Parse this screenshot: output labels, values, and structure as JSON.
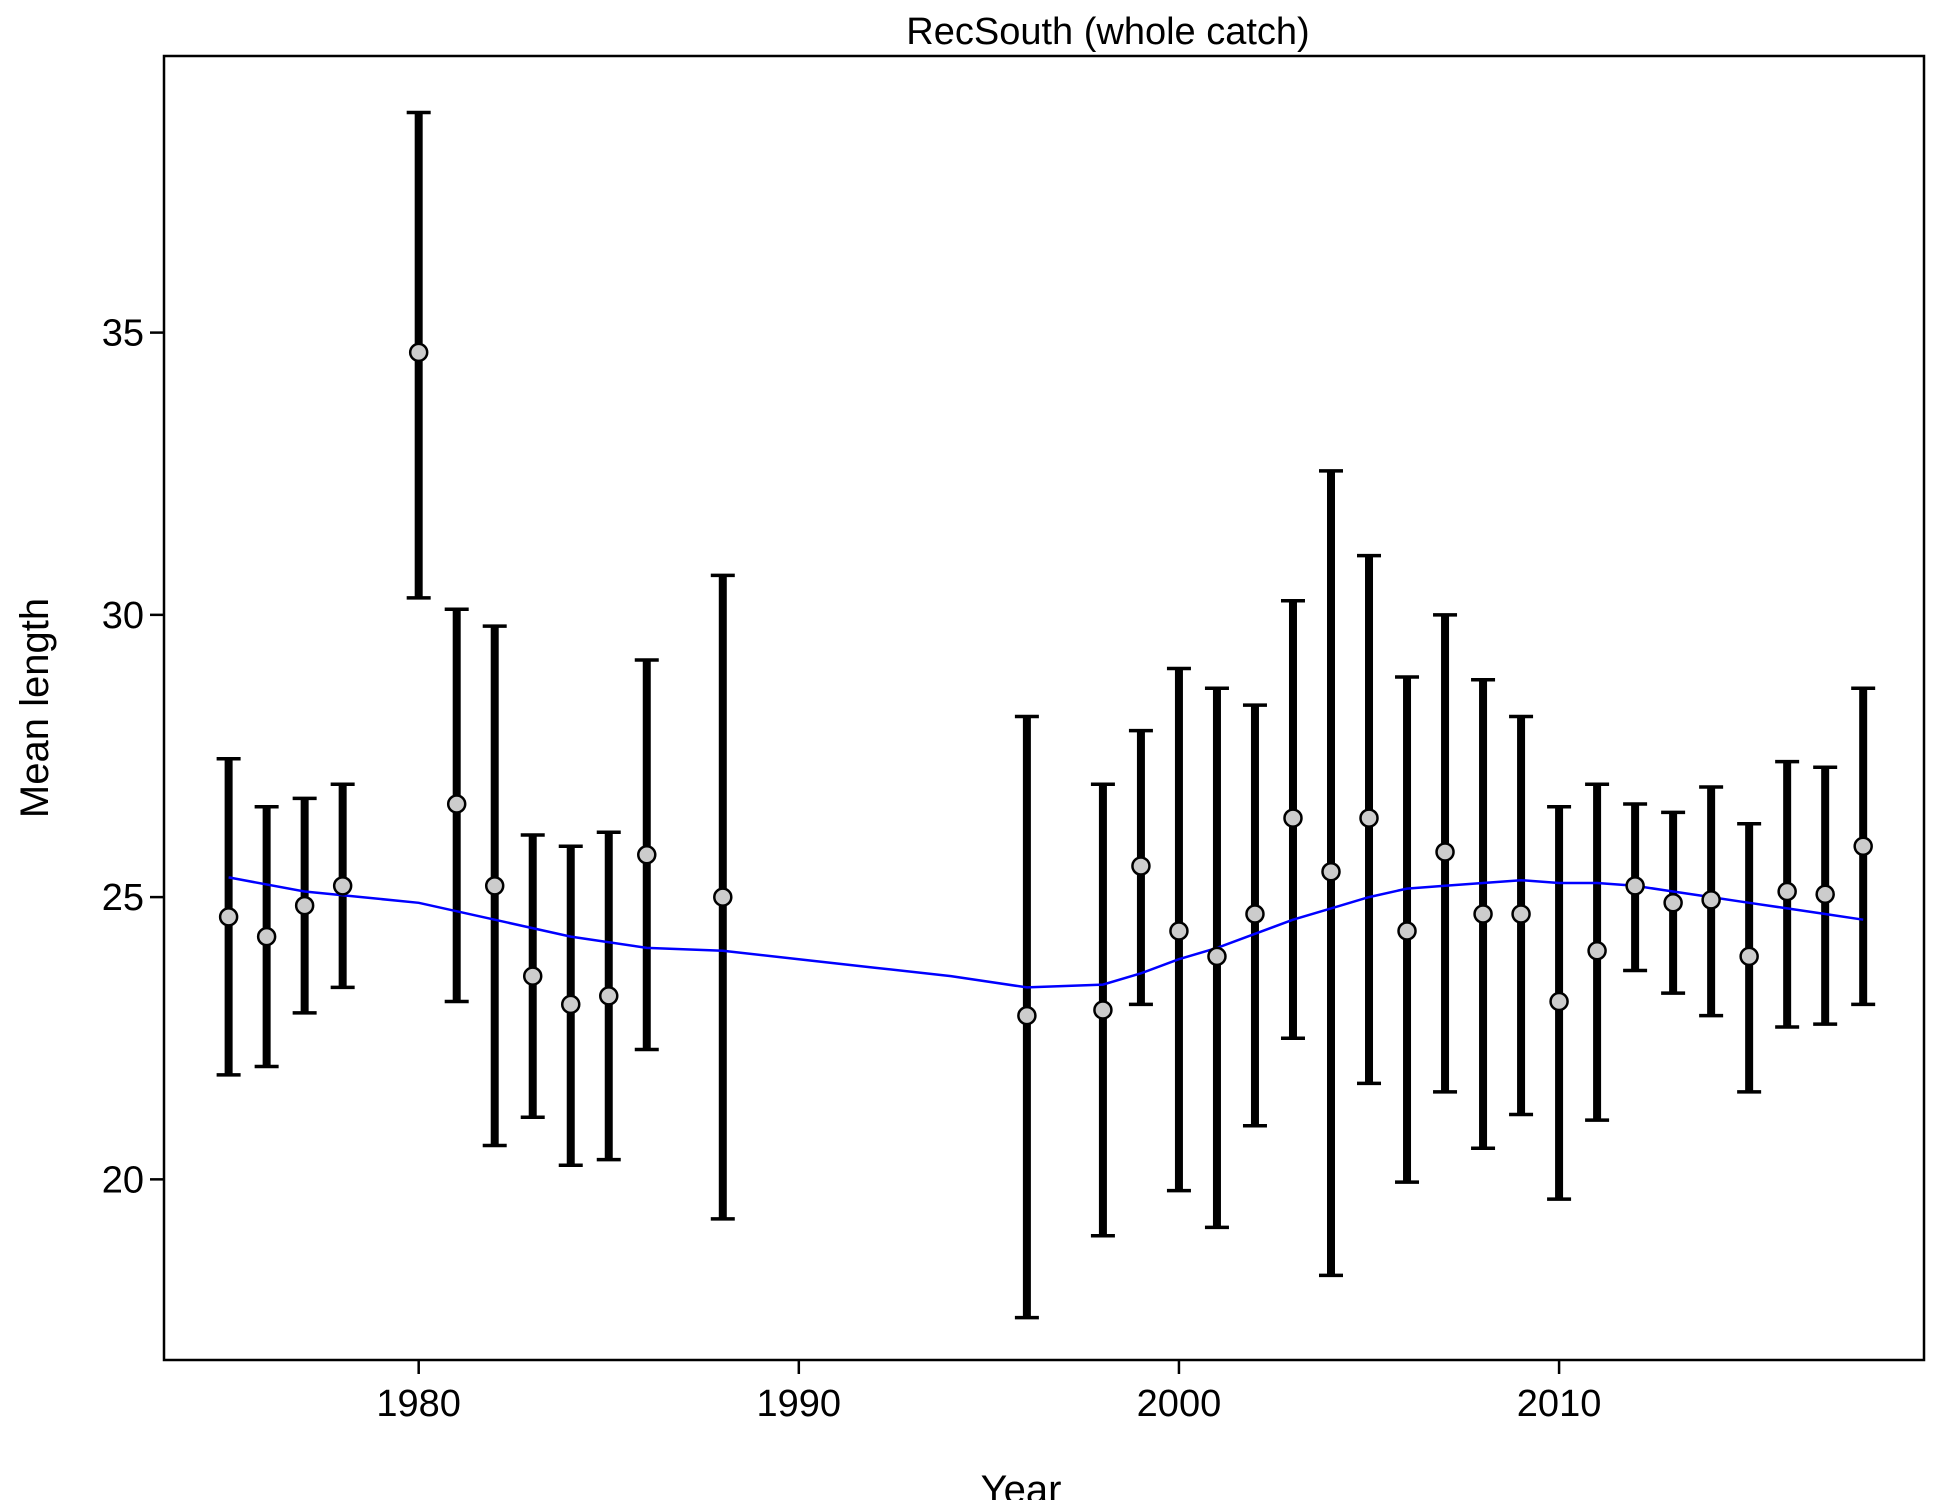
{
  "chart_data": {
    "type": "scatter",
    "title": "RecSouth (whole catch)",
    "xlabel": "Year",
    "ylabel": "Mean length",
    "xlim": [
      1973.3,
      2019.6
    ],
    "ylim": [
      16.8,
      39.9
    ],
    "xticks": [
      1980,
      1990,
      2000,
      2010
    ],
    "yticks": [
      20,
      25,
      30,
      35
    ],
    "grid": false,
    "legend": "none",
    "colors": {
      "points_fill": "#cccccc",
      "points_stroke": "#000000",
      "error_bars": "#000000",
      "smoother": "#0000ff"
    },
    "points": [
      {
        "x": 1975,
        "y": 24.65,
        "lo": 21.85,
        "hi": 27.45
      },
      {
        "x": 1976,
        "y": 24.3,
        "lo": 22.0,
        "hi": 26.6
      },
      {
        "x": 1977,
        "y": 24.85,
        "lo": 22.95,
        "hi": 26.75
      },
      {
        "x": 1978,
        "y": 25.2,
        "lo": 23.4,
        "hi": 27.0
      },
      {
        "x": 1980,
        "y": 34.65,
        "lo": 30.3,
        "hi": 38.9
      },
      {
        "x": 1981,
        "y": 26.65,
        "lo": 23.15,
        "hi": 30.1
      },
      {
        "x": 1982,
        "y": 25.2,
        "lo": 20.6,
        "hi": 29.8
      },
      {
        "x": 1983,
        "y": 23.6,
        "lo": 21.1,
        "hi": 26.1
      },
      {
        "x": 1984,
        "y": 23.1,
        "lo": 20.25,
        "hi": 25.9
      },
      {
        "x": 1985,
        "y": 23.25,
        "lo": 20.35,
        "hi": 26.15
      },
      {
        "x": 1986,
        "y": 25.75,
        "lo": 22.3,
        "hi": 29.2
      },
      {
        "x": 1988,
        "y": 25.0,
        "lo": 19.3,
        "hi": 30.7
      },
      {
        "x": 1996,
        "y": 22.9,
        "lo": 17.55,
        "hi": 28.2
      },
      {
        "x": 1998,
        "y": 23.0,
        "lo": 19.0,
        "hi": 27.0
      },
      {
        "x": 1999,
        "y": 25.55,
        "lo": 23.1,
        "hi": 27.95
      },
      {
        "x": 2000,
        "y": 24.4,
        "lo": 19.8,
        "hi": 29.05
      },
      {
        "x": 2001,
        "y": 23.95,
        "lo": 19.15,
        "hi": 28.7
      },
      {
        "x": 2002,
        "y": 24.7,
        "lo": 20.95,
        "hi": 28.4
      },
      {
        "x": 2003,
        "y": 26.4,
        "lo": 22.5,
        "hi": 30.25
      },
      {
        "x": 2004,
        "y": 25.45,
        "lo": 18.3,
        "hi": 32.55
      },
      {
        "x": 2005,
        "y": 26.4,
        "lo": 21.7,
        "hi": 31.05
      },
      {
        "x": 2006,
        "y": 24.4,
        "lo": 19.95,
        "hi": 28.9
      },
      {
        "x": 2007,
        "y": 25.8,
        "lo": 21.55,
        "hi": 30.0
      },
      {
        "x": 2008,
        "y": 24.7,
        "lo": 20.55,
        "hi": 28.85
      },
      {
        "x": 2009,
        "y": 24.7,
        "lo": 21.15,
        "hi": 28.2
      },
      {
        "x": 2010,
        "y": 23.15,
        "lo": 19.65,
        "hi": 26.6
      },
      {
        "x": 2011,
        "y": 24.05,
        "lo": 21.05,
        "hi": 27.0
      },
      {
        "x": 2012,
        "y": 25.2,
        "lo": 23.7,
        "hi": 26.65
      },
      {
        "x": 2013,
        "y": 24.9,
        "lo": 23.3,
        "hi": 26.5
      },
      {
        "x": 2014,
        "y": 24.95,
        "lo": 22.9,
        "hi": 26.95
      },
      {
        "x": 2015,
        "y": 23.95,
        "lo": 21.55,
        "hi": 26.3
      },
      {
        "x": 2016,
        "y": 25.1,
        "lo": 22.7,
        "hi": 27.4
      },
      {
        "x": 2017,
        "y": 25.05,
        "lo": 22.75,
        "hi": 27.3
      },
      {
        "x": 2018,
        "y": 25.9,
        "lo": 23.1,
        "hi": 28.7
      }
    ],
    "smoother": [
      {
        "x": 1975,
        "y": 25.35
      },
      {
        "x": 1977,
        "y": 25.1
      },
      {
        "x": 1980,
        "y": 24.9
      },
      {
        "x": 1982,
        "y": 24.6
      },
      {
        "x": 1984,
        "y": 24.3
      },
      {
        "x": 1986,
        "y": 24.1
      },
      {
        "x": 1988,
        "y": 24.05
      },
      {
        "x": 1990,
        "y": 23.9
      },
      {
        "x": 1992,
        "y": 23.75
      },
      {
        "x": 1994,
        "y": 23.6
      },
      {
        "x": 1996,
        "y": 23.4
      },
      {
        "x": 1998,
        "y": 23.45
      },
      {
        "x": 1999,
        "y": 23.65
      },
      {
        "x": 2000,
        "y": 23.9
      },
      {
        "x": 2001,
        "y": 24.1
      },
      {
        "x": 2002,
        "y": 24.35
      },
      {
        "x": 2003,
        "y": 24.6
      },
      {
        "x": 2004,
        "y": 24.8
      },
      {
        "x": 2005,
        "y": 25.0
      },
      {
        "x": 2006,
        "y": 25.15
      },
      {
        "x": 2007,
        "y": 25.2
      },
      {
        "x": 2008,
        "y": 25.25
      },
      {
        "x": 2009,
        "y": 25.3
      },
      {
        "x": 2010,
        "y": 25.25
      },
      {
        "x": 2011,
        "y": 25.25
      },
      {
        "x": 2012,
        "y": 25.2
      },
      {
        "x": 2013,
        "y": 25.1
      },
      {
        "x": 2014,
        "y": 25.0
      },
      {
        "x": 2015,
        "y": 24.9
      },
      {
        "x": 2016,
        "y": 24.8
      },
      {
        "x": 2017,
        "y": 24.7
      },
      {
        "x": 2018,
        "y": 24.6
      }
    ]
  }
}
